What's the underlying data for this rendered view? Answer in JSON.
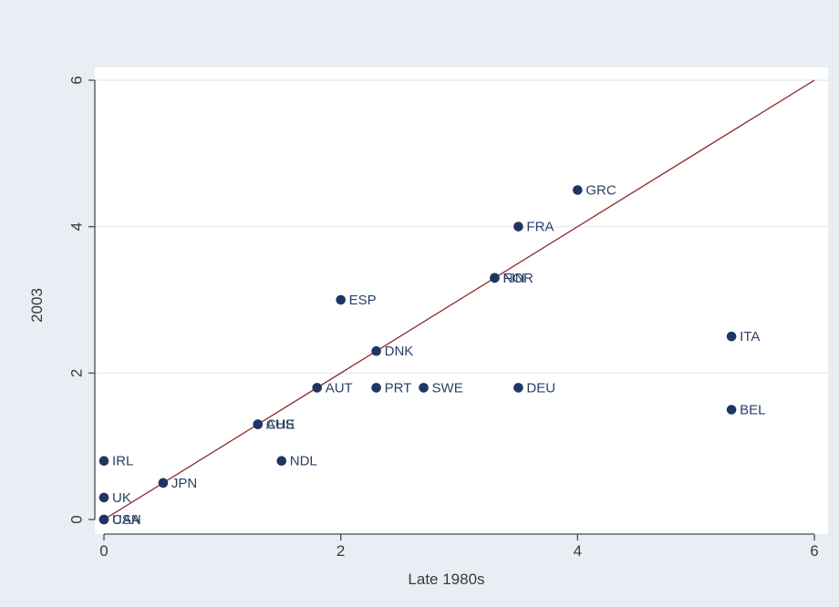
{
  "chart_data": {
    "type": "scatter",
    "title": "",
    "xlabel": "Late 1980s",
    "ylabel": "2003",
    "xlim": [
      0,
      6
    ],
    "ylim": [
      0,
      6
    ],
    "xticks": [
      0,
      2,
      4,
      6
    ],
    "yticks": [
      0,
      2,
      4,
      6
    ],
    "grid": "horizontal",
    "points": [
      {
        "label": "GRC",
        "x": 4.0,
        "y": 4.5
      },
      {
        "label": "FRA",
        "x": 3.5,
        "y": 4.0
      },
      {
        "label": "FIN",
        "x": 3.3,
        "y": 3.3
      },
      {
        "label": "NOR",
        "x": 3.3,
        "y": 3.3
      },
      {
        "label": "ESP",
        "x": 2.0,
        "y": 3.0
      },
      {
        "label": "ITA",
        "x": 5.3,
        "y": 2.5
      },
      {
        "label": "DNK",
        "x": 2.3,
        "y": 2.3
      },
      {
        "label": "AUT",
        "x": 1.8,
        "y": 1.8
      },
      {
        "label": "PRT",
        "x": 2.3,
        "y": 1.8
      },
      {
        "label": "SWE",
        "x": 2.7,
        "y": 1.8
      },
      {
        "label": "DEU",
        "x": 3.5,
        "y": 1.8
      },
      {
        "label": "BEL",
        "x": 5.3,
        "y": 1.5
      },
      {
        "label": "CHE",
        "x": 1.3,
        "y": 1.3
      },
      {
        "label": "AUS",
        "x": 1.3,
        "y": 1.3
      },
      {
        "label": "IRL",
        "x": 0.0,
        "y": 0.8
      },
      {
        "label": "NDL",
        "x": 1.5,
        "y": 0.8
      },
      {
        "label": "JPN",
        "x": 0.5,
        "y": 0.5
      },
      {
        "label": "UK",
        "x": 0.0,
        "y": 0.3
      },
      {
        "label": "USA",
        "x": 0.0,
        "y": 0.0
      },
      {
        "label": "CAN",
        "x": 0.0,
        "y": 0.0
      }
    ],
    "reference_line": {
      "x": [
        0,
        6
      ],
      "y": [
        0,
        6
      ],
      "color": "#8b2a2a"
    },
    "colors": {
      "marker": "#1f3563",
      "label": "#2a3f66",
      "plot_bg": "#ffffff",
      "outer_bg": "#e8eef3",
      "grid": "#e4e8ec"
    }
  }
}
